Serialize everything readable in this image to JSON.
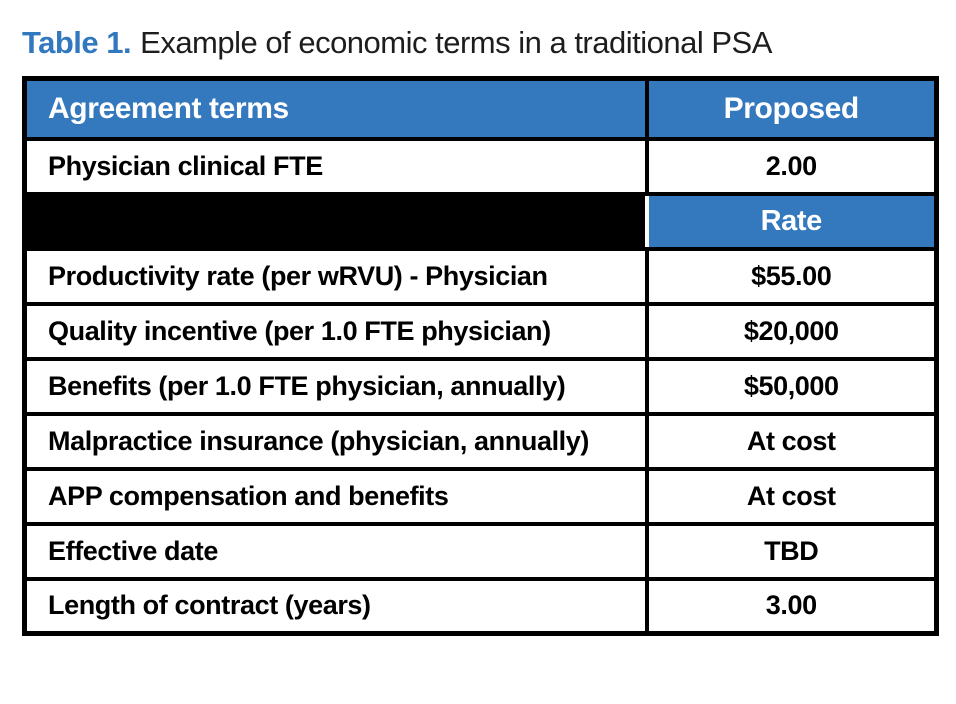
{
  "title": {
    "label": "Table 1.",
    "text": "Example of economic terms in a traditional PSA"
  },
  "colors": {
    "header_blue": "#3478be",
    "title_blue": "#3278be",
    "black_row": "#000000",
    "border": "#000000",
    "header_text": "#ffffff"
  },
  "table": {
    "header": {
      "term": "Agreement terms",
      "value": "Proposed"
    },
    "rate_subheader": "Rate",
    "rows": [
      {
        "term": "Physician clinical FTE",
        "value": "2.00"
      },
      {
        "term": "Productivity rate (per wRVU) - Physician",
        "value": "$55.00"
      },
      {
        "term": "Quality incentive (per 1.0 FTE physician)",
        "value": "$20,000"
      },
      {
        "term": "Benefits (per 1.0 FTE physician, annually)",
        "value": "$50,000"
      },
      {
        "term": "Malpractice insurance (physician, annually)",
        "value": "At cost"
      },
      {
        "term": "APP compensation and benefits",
        "value": "At cost"
      },
      {
        "term": "Effective date",
        "value": "TBD"
      },
      {
        "term": "Length of contract (years)",
        "value": "3.00"
      }
    ]
  }
}
